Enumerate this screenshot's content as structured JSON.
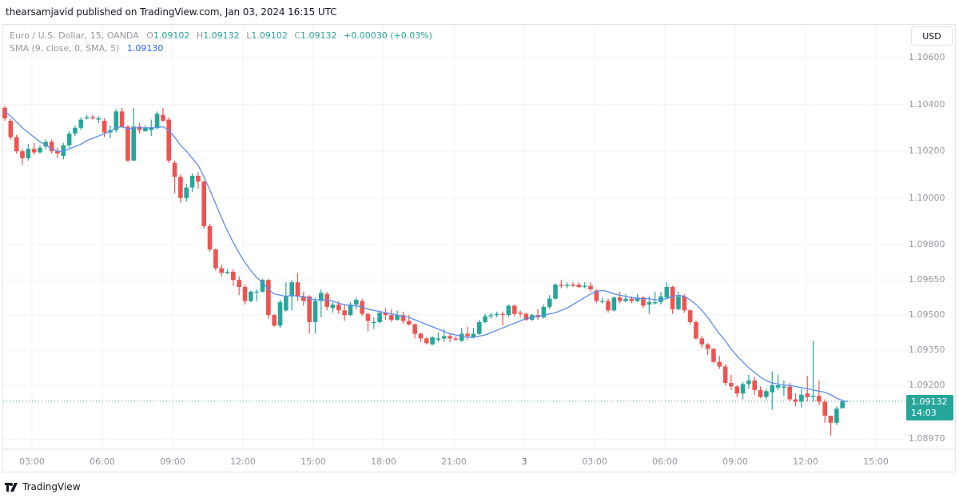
{
  "header": {
    "publisher_line": "thearsamjavid published on TradingView.com, Jan 03, 2024 16:15 UTC"
  },
  "legend": {
    "symbol": "Euro / U.S. Dollar, 15, OANDA",
    "open_key": "O",
    "open": "1.09102",
    "high_key": "H",
    "high": "1.09132",
    "low_key": "L",
    "low": "1.09102",
    "close_key": "C",
    "close": "1.09132",
    "change": "+0.00030 (+0.03%)",
    "sma_label": "SMA (9, close, 0, SMA, 5)",
    "sma_value": "1.09130"
  },
  "currency_button": "USD",
  "last_price": {
    "price": "1.09132",
    "countdown": "14:03"
  },
  "footer": {
    "brand": "TradingView"
  },
  "colors": {
    "up": "#26a69a",
    "down": "#ef5350",
    "sma": "#5b8def",
    "grid": "#f0f3fa",
    "axis_text": "#9598a1"
  },
  "chart_data": {
    "type": "candlestick",
    "title": "Euro / U.S. Dollar, 15, OANDA",
    "interval": "15",
    "price_axis": {
      "ticks": [
        "1.10600",
        "1.10400",
        "1.10200",
        "1.10000",
        "1.09800",
        "1.09650",
        "1.09500",
        "1.09350",
        "1.09200",
        "1.08970"
      ],
      "range": [
        1.0893,
        1.107
      ]
    },
    "time_axis": {
      "ticks": [
        "03:00",
        "06:00",
        "09:00",
        "12:00",
        "15:00",
        "18:00",
        "21:00",
        "3",
        "03:00",
        "06:00",
        "09:00",
        "12:00",
        "15:00"
      ]
    },
    "indicator": {
      "name": "SMA",
      "length": 9,
      "source": "close",
      "last": 1.0913
    },
    "candles": [
      [
        1.10385,
        1.1034,
        1.10395,
        1.1033
      ],
      [
        1.1033,
        1.1026,
        1.1034,
        1.1025
      ],
      [
        1.1026,
        1.102,
        1.1027,
        1.1019
      ],
      [
        1.102,
        1.1017,
        1.1021,
        1.1014
      ],
      [
        1.1017,
        1.1021,
        1.1023,
        1.1016
      ],
      [
        1.1021,
        1.10195,
        1.10235,
        1.10185
      ],
      [
        1.10195,
        1.10215,
        1.10225,
        1.1019
      ],
      [
        1.1022,
        1.1024,
        1.1025,
        1.1021
      ],
      [
        1.1024,
        1.102,
        1.1025,
        1.1019
      ],
      [
        1.102,
        1.1019,
        1.10215,
        1.1017
      ],
      [
        1.1018,
        1.10225,
        1.10235,
        1.10165
      ],
      [
        1.10225,
        1.10275,
        1.10285,
        1.10215
      ],
      [
        1.10275,
        1.103,
        1.1031,
        1.10265
      ],
      [
        1.103,
        1.10335,
        1.10345,
        1.1029
      ],
      [
        1.1034,
        1.10345,
        1.10355,
        1.10335
      ],
      [
        1.10345,
        1.1034,
        1.10355,
        1.10335
      ],
      [
        1.10335,
        1.1034,
        1.1035,
        1.1032
      ],
      [
        1.1033,
        1.1028,
        1.1034,
        1.1026
      ],
      [
        1.1028,
        1.1029,
        1.1031,
        1.10255
      ],
      [
        1.1029,
        1.1037,
        1.1038,
        1.1028
      ],
      [
        1.1037,
        1.10305,
        1.10385,
        1.103
      ],
      [
        1.10305,
        1.1016,
        1.1031,
        1.10155
      ],
      [
        1.1016,
        1.10305,
        1.10385,
        1.1016
      ],
      [
        1.10305,
        1.1029,
        1.1032,
        1.10275
      ],
      [
        1.10285,
        1.103,
        1.1031,
        1.10285
      ],
      [
        1.1029,
        1.103,
        1.10335,
        1.10265
      ],
      [
        1.103,
        1.1036,
        1.1037,
        1.10295
      ],
      [
        1.10355,
        1.1033,
        1.10385,
        1.10325
      ],
      [
        1.10335,
        1.1016,
        1.10345,
        1.1015
      ],
      [
        1.1015,
        1.1009,
        1.1016,
        1.1002
      ],
      [
        1.1009,
        1.1,
        1.101,
        1.0998
      ],
      [
        1.1,
        1.10045,
        1.1006,
        1.09985
      ],
      [
        1.10045,
        1.10095,
        1.10105,
        1.10025
      ],
      [
        1.10095,
        1.1007,
        1.1011,
        1.1004
      ],
      [
        1.1007,
        1.0988,
        1.10075,
        1.0987
      ],
      [
        1.0988,
        1.0978,
        1.0989,
        1.0977
      ],
      [
        1.0978,
        1.097,
        1.09785,
        1.0969
      ],
      [
        1.097,
        1.0968,
        1.09715,
        1.09665
      ],
      [
        1.0968,
        1.09685,
        1.09695,
        1.09675
      ],
      [
        1.09685,
        1.0965,
        1.09695,
        1.09625
      ],
      [
        1.0965,
        1.0962,
        1.09665,
        1.09585
      ],
      [
        1.0962,
        1.0956,
        1.0963,
        1.09545
      ],
      [
        1.0956,
        1.096,
        1.09605,
        1.09555
      ],
      [
        1.096,
        1.096,
        1.0961,
        1.0956
      ],
      [
        1.096,
        1.0965,
        1.09655,
        1.09595
      ],
      [
        1.0965,
        1.095,
        1.09655,
        1.09485
      ],
      [
        1.095,
        1.09455,
        1.09505,
        1.0945
      ],
      [
        1.09455,
        1.09555,
        1.09565,
        1.09445
      ],
      [
        1.0952,
        1.0958,
        1.0964,
        1.09515
      ],
      [
        1.0958,
        1.0964,
        1.0965,
        1.0952
      ],
      [
        1.0964,
        1.0958,
        1.0968,
        1.0956
      ],
      [
        1.0958,
        1.0956,
        1.096,
        1.0954
      ],
      [
        1.0958,
        1.0947,
        1.09585,
        1.0942
      ],
      [
        1.0947,
        1.0956,
        1.09575,
        1.0942
      ],
      [
        1.0956,
        1.09595,
        1.0961,
        1.0949
      ],
      [
        1.0959,
        1.09535,
        1.096,
        1.0952
      ],
      [
        1.0953,
        1.09545,
        1.0956,
        1.0951
      ],
      [
        1.09545,
        1.0952,
        1.0956,
        1.09505
      ],
      [
        1.0952,
        1.095,
        1.09545,
        1.09475
      ],
      [
        1.095,
        1.09545,
        1.09555,
        1.09495
      ],
      [
        1.09545,
        1.09565,
        1.09575,
        1.09525
      ],
      [
        1.0956,
        1.09505,
        1.0957,
        1.09495
      ],
      [
        1.09505,
        1.09475,
        1.0951,
        1.0943
      ],
      [
        1.0947,
        1.0947,
        1.0949,
        1.0944
      ],
      [
        1.0947,
        1.0951,
        1.0952,
        1.09465
      ],
      [
        1.0951,
        1.095,
        1.0953,
        1.0948
      ],
      [
        1.095,
        1.0948,
        1.09525,
        1.0947
      ],
      [
        1.0948,
        1.095,
        1.0952,
        1.09475
      ],
      [
        1.095,
        1.09475,
        1.09515,
        1.09465
      ],
      [
        1.09475,
        1.0946,
        1.095,
        1.09455
      ],
      [
        1.0946,
        1.0942,
        1.09465,
        1.094
      ],
      [
        1.0942,
        1.094,
        1.09425,
        1.09385
      ],
      [
        1.094,
        1.0938,
        1.09405,
        1.09375
      ],
      [
        1.09375,
        1.09405,
        1.0941,
        1.0937
      ],
      [
        1.09395,
        1.094,
        1.09425,
        1.09385
      ],
      [
        1.094,
        1.0941,
        1.0944,
        1.09385
      ],
      [
        1.0941,
        1.094,
        1.0942,
        1.09385
      ],
      [
        1.094,
        1.09395,
        1.0941,
        1.0939
      ],
      [
        1.0939,
        1.0942,
        1.09445,
        1.09385
      ],
      [
        1.0942,
        1.0941,
        1.0945,
        1.09395
      ],
      [
        1.09405,
        1.0942,
        1.09445,
        1.094
      ],
      [
        1.0942,
        1.0947,
        1.0948,
        1.09415
      ],
      [
        1.0947,
        1.09495,
        1.09505,
        1.09465
      ],
      [
        1.09495,
        1.095,
        1.0951,
        1.09485
      ],
      [
        1.095,
        1.09505,
        1.09515,
        1.0949
      ],
      [
        1.09505,
        1.095,
        1.09515,
        1.09455
      ],
      [
        1.095,
        1.0954,
        1.09545,
        1.0949
      ],
      [
        1.0954,
        1.09505,
        1.09545,
        1.09495
      ],
      [
        1.0951,
        1.09505,
        1.0952,
        1.0949
      ],
      [
        1.09505,
        1.0948,
        1.0951,
        1.09475
      ],
      [
        1.0948,
        1.095,
        1.09505,
        1.09475
      ],
      [
        1.095,
        1.0949,
        1.09525,
        1.0948
      ],
      [
        1.0949,
        1.09535,
        1.09545,
        1.09485
      ],
      [
        1.09535,
        1.0957,
        1.09585,
        1.09525
      ],
      [
        1.0957,
        1.0963,
        1.09635,
        1.09565
      ],
      [
        1.0963,
        1.09625,
        1.0965,
        1.09615
      ],
      [
        1.09625,
        1.0963,
        1.0964,
        1.09615
      ],
      [
        1.0963,
        1.09625,
        1.0964,
        1.0962
      ],
      [
        1.0963,
        1.0962,
        1.0964,
        1.09615
      ],
      [
        1.0962,
        1.09625,
        1.0964,
        1.09615
      ],
      [
        1.09625,
        1.0961,
        1.0964,
        1.096
      ],
      [
        1.09605,
        1.0956,
        1.0961,
        1.0955
      ],
      [
        1.0956,
        1.0956,
        1.09575,
        1.0955
      ],
      [
        1.0956,
        1.0952,
        1.0957,
        1.0951
      ],
      [
        1.0952,
        1.09575,
        1.0958,
        1.09515
      ],
      [
        1.09575,
        1.0956,
        1.096,
        1.0955
      ],
      [
        1.0956,
        1.0957,
        1.0959,
        1.09555
      ],
      [
        1.0957,
        1.0956,
        1.0958,
        1.0955
      ],
      [
        1.0956,
        1.09575,
        1.0959,
        1.09555
      ],
      [
        1.09575,
        1.0954,
        1.0958,
        1.0953
      ],
      [
        1.09545,
        1.09555,
        1.0958,
        1.09505
      ],
      [
        1.0955,
        1.09555,
        1.096,
        1.09545
      ],
      [
        1.09555,
        1.0958,
        1.096,
        1.09545
      ],
      [
        1.09575,
        1.0962,
        1.0964,
        1.0957
      ],
      [
        1.0962,
        1.09525,
        1.09625,
        1.09505
      ],
      [
        1.09525,
        1.0958,
        1.096,
        1.0952
      ],
      [
        1.0958,
        1.0952,
        1.0959,
        1.0951
      ],
      [
        1.0952,
        1.0947,
        1.09525,
        1.0946
      ],
      [
        1.0947,
        1.094,
        1.09475,
        1.09395
      ],
      [
        1.094,
        1.09375,
        1.0941,
        1.0936
      ],
      [
        1.09375,
        1.09355,
        1.0938,
        1.0933
      ],
      [
        1.09355,
        1.093,
        1.0936,
        1.09295
      ],
      [
        1.093,
        1.0928,
        1.09325,
        1.0927
      ],
      [
        1.0928,
        1.0921,
        1.0929,
        1.092
      ],
      [
        1.0921,
        1.09195,
        1.09245,
        1.0918
      ],
      [
        1.09195,
        1.09165,
        1.092,
        1.0915
      ],
      [
        1.09165,
        1.09205,
        1.09215,
        1.0914
      ],
      [
        1.09205,
        1.0922,
        1.09245,
        1.09185
      ],
      [
        1.0922,
        1.0918,
        1.09235,
        1.0916
      ],
      [
        1.0918,
        1.0915,
        1.09195,
        1.09145
      ],
      [
        1.0915,
        1.09175,
        1.09185,
        1.0914
      ],
      [
        1.0917,
        1.092,
        1.0926,
        1.09095
      ],
      [
        1.0919,
        1.092,
        1.09245,
        1.0918
      ],
      [
        1.0919,
        1.09195,
        1.0922,
        1.09155
      ],
      [
        1.09195,
        1.0914,
        1.0921,
        1.0913
      ],
      [
        1.0914,
        1.0913,
        1.09165,
        1.0911
      ],
      [
        1.0913,
        1.0916,
        1.09185,
        1.09105
      ],
      [
        1.09165,
        1.0915,
        1.0924,
        1.0913
      ],
      [
        1.0915,
        1.09155,
        1.0939,
        1.0913
      ],
      [
        1.09155,
        1.0913,
        1.0922,
        1.09115
      ],
      [
        1.0913,
        1.0907,
        1.0914,
        1.0904
      ],
      [
        1.0907,
        1.0904,
        1.0907,
        1.08985
      ],
      [
        1.0904,
        1.091,
        1.0911,
        1.0903
      ],
      [
        1.09102,
        1.09132,
        1.09132,
        1.09102
      ]
    ],
    "sma": [
      1.1037,
      1.1035,
      1.10325,
      1.103,
      1.1028,
      1.1026,
      1.1024,
      1.10225,
      1.1021,
      1.102,
      1.102,
      1.1021,
      1.1022,
      1.1023,
      1.10245,
      1.10255,
      1.10265,
      1.10275,
      1.10285,
      1.103,
      1.10305,
      1.10295,
      1.103,
      1.103,
      1.103,
      1.103,
      1.103,
      1.10305,
      1.1029,
      1.1026,
      1.10225,
      1.102,
      1.1017,
      1.1014,
      1.1009,
      1.10035,
      1.09975,
      1.09915,
      1.0986,
      1.0981,
      1.09765,
      1.09725,
      1.0969,
      1.0966,
      1.0964,
      1.0961,
      1.0959,
      1.09585,
      1.0958,
      1.09585,
      1.0958,
      1.0958,
      1.0957,
      1.09565,
      1.09565,
      1.09565,
      1.0956,
      1.0955,
      1.09545,
      1.0954,
      1.0954,
      1.09535,
      1.09525,
      1.0952,
      1.09515,
      1.0951,
      1.09505,
      1.095,
      1.09495,
      1.0949,
      1.0948,
      1.0947,
      1.0946,
      1.0945,
      1.0944,
      1.0943,
      1.0942,
      1.09415,
      1.0941,
      1.09405,
      1.09405,
      1.0941,
      1.09415,
      1.09425,
      1.09435,
      1.09445,
      1.09455,
      1.09465,
      1.09475,
      1.09485,
      1.0949,
      1.09495,
      1.095,
      1.09505,
      1.0951,
      1.0952,
      1.0953,
      1.09545,
      1.0956,
      1.09575,
      1.0959,
      1.096,
      1.09605,
      1.096,
      1.0959,
      1.09585,
      1.0958,
      1.09575,
      1.0957,
      1.0957,
      1.0957,
      1.09565,
      1.09565,
      1.0957,
      1.0958,
      1.09585,
      1.0958,
      1.09565,
      1.09545,
      1.0952,
      1.0949,
      1.09455,
      1.0942,
      1.0939,
      1.09355,
      1.09325,
      1.093,
      1.09275,
      1.09255,
      1.09235,
      1.0922,
      1.0921,
      1.09205,
      1.092,
      1.092,
      1.09195,
      1.0919,
      1.09185,
      1.0918,
      1.09175,
      1.0917,
      1.0916,
      1.09145,
      1.09135,
      1.0913
    ]
  }
}
